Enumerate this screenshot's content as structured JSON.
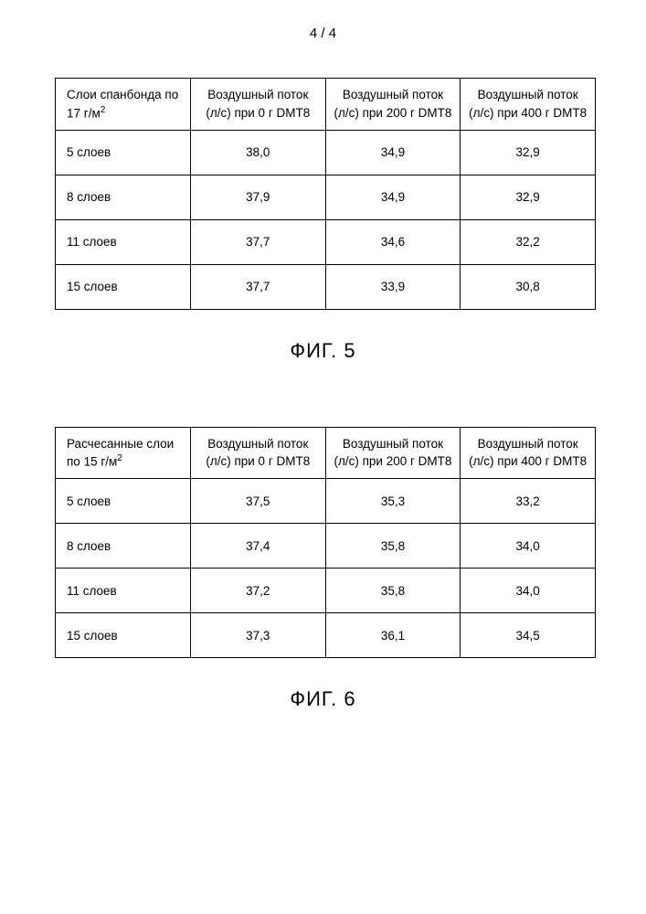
{
  "page_number": "4 / 4",
  "figure5": {
    "caption": "ФИГ. 5",
    "columns": [
      {
        "line1": "Слои спанбонда по",
        "line2": "17 г/м",
        "sup": "2"
      },
      {
        "line1": "Воздушный поток",
        "line2": "(л/с) при 0 г DMT8"
      },
      {
        "line1": "Воздушный поток",
        "line2": "(л/с) при 200 г DMT8"
      },
      {
        "line1": "Воздушный поток",
        "line2": "(л/с) при 400 г DMT8"
      }
    ],
    "rows": [
      {
        "label": "5 слоев",
        "v0": "38,0",
        "v200": "34,9",
        "v400": "32,9"
      },
      {
        "label": "8 слоев",
        "v0": "37,9",
        "v200": "34,9",
        "v400": "32,9"
      },
      {
        "label": "11 слоев",
        "v0": "37,7",
        "v200": "34,6",
        "v400": "32,2"
      },
      {
        "label": "15 слоев",
        "v0": "37,7",
        "v200": "33,9",
        "v400": "30,8"
      }
    ]
  },
  "figure6": {
    "caption": "ФИГ. 6",
    "columns": [
      {
        "line1": "Расчесанные слои",
        "line2": "по 15 г/м",
        "sup": "2"
      },
      {
        "line1": "Воздушный поток",
        "line2": "(л/с) при 0 г DMT8"
      },
      {
        "line1": "Воздушный поток",
        "line2": "(л/с) при 200 г DMT8"
      },
      {
        "line1": "Воздушный поток",
        "line2": "(л/с) при 400 г DMT8"
      }
    ],
    "rows": [
      {
        "label": "5 слоев",
        "v0": "37,5",
        "v200": "35,3",
        "v400": "33,2"
      },
      {
        "label": "8 слоев",
        "v0": "37,4",
        "v200": "35,8",
        "v400": "34,0"
      },
      {
        "label": "11 слоев",
        "v0": "37,2",
        "v200": "35,8",
        "v400": "34,0"
      },
      {
        "label": "15 слоев",
        "v0": "37,3",
        "v200": "36,1",
        "v400": "34,5"
      }
    ]
  }
}
